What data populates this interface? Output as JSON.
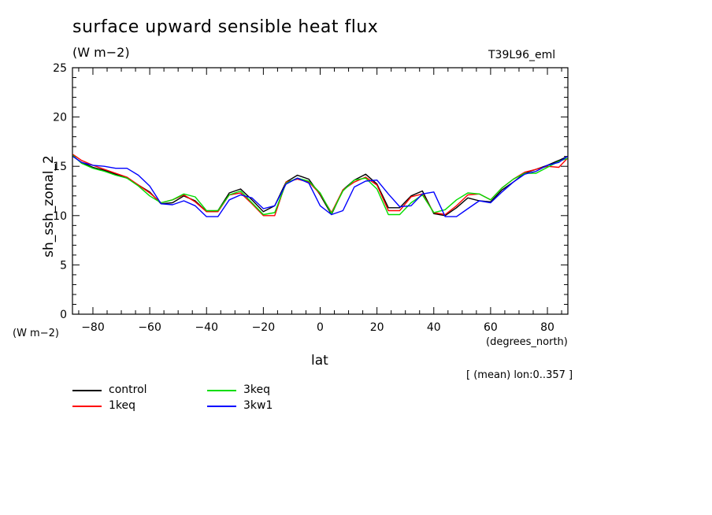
{
  "header": {
    "title": "surface upward sensible heat flux",
    "subtitle": "(W m−2)",
    "experiment": "T39L96_eml"
  },
  "axes": {
    "ylabel": "sh_ssh_zonal_2",
    "yunits": "(W m−2)",
    "xlabel": "lat",
    "xunits": "(degrees_north)",
    "note": "[ (mean) lon:0..357 ]"
  },
  "chart_data": {
    "type": "line",
    "title": "surface upward sensible heat flux",
    "xlabel": "lat",
    "ylabel": "sh_ssh_zonal_2",
    "xlim": [
      -87.2,
      87.2
    ],
    "ylim": [
      0,
      25
    ],
    "xticks": [
      -80,
      -60,
      -40,
      -20,
      0,
      20,
      40,
      60,
      80
    ],
    "xtick_labels": [
      "−80",
      "−60",
      "−40",
      "−20",
      "0",
      "20",
      "40",
      "60",
      "80"
    ],
    "yticks": [
      0,
      5,
      10,
      15,
      20,
      25
    ],
    "ytick_labels": [
      "0",
      "5",
      "10",
      "15",
      "20",
      "25"
    ],
    "grid": false,
    "legend_position": "bottom-left",
    "x": [
      -87,
      -84,
      -80,
      -76,
      -72,
      -68,
      -64,
      -60,
      -56,
      -52,
      -48,
      -44,
      -40,
      -36,
      -32,
      -28,
      -24,
      -20,
      -16,
      -12,
      -8,
      -4,
      0,
      4,
      8,
      12,
      16,
      20,
      24,
      28,
      32,
      36,
      40,
      44,
      48,
      52,
      56,
      60,
      64,
      68,
      72,
      76,
      80,
      84,
      87
    ],
    "series": [
      {
        "name": "control",
        "color": "#000000",
        "values": [
          16.0,
          15.4,
          14.9,
          14.6,
          14.2,
          13.8,
          13.1,
          12.4,
          11.2,
          11.3,
          12.0,
          11.5,
          10.4,
          10.5,
          12.3,
          12.7,
          11.6,
          10.4,
          11.0,
          13.4,
          14.1,
          13.7,
          12.1,
          10.1,
          12.6,
          13.6,
          14.2,
          13.2,
          10.8,
          10.8,
          12.0,
          12.5,
          10.2,
          10.0,
          10.8,
          11.8,
          11.5,
          11.4,
          12.6,
          13.4,
          14.3,
          14.7,
          15.1,
          15.6,
          16.0
        ]
      },
      {
        "name": "1keq",
        "color": "#ff0000",
        "values": [
          16.2,
          15.6,
          15.1,
          14.7,
          14.3,
          13.9,
          13.1,
          12.3,
          11.3,
          11.6,
          12.1,
          11.4,
          10.4,
          10.4,
          12.1,
          12.3,
          11.2,
          10.0,
          10.0,
          13.4,
          13.7,
          13.4,
          12.2,
          10.3,
          12.6,
          13.4,
          13.9,
          13.1,
          10.5,
          10.5,
          11.9,
          12.2,
          10.3,
          10.1,
          11.0,
          12.1,
          12.2,
          11.6,
          12.8,
          13.7,
          14.4,
          14.7,
          15.0,
          14.9,
          15.8
        ]
      },
      {
        "name": "3keq",
        "color": "#00dd00",
        "values": [
          16.1,
          15.3,
          14.8,
          14.5,
          14.1,
          13.8,
          13.0,
          12.0,
          11.3,
          11.6,
          12.2,
          11.9,
          10.5,
          10.5,
          12.1,
          12.5,
          11.3,
          10.1,
          10.3,
          13.3,
          13.8,
          13.5,
          12.3,
          10.2,
          12.5,
          13.6,
          13.8,
          12.7,
          10.1,
          10.1,
          11.3,
          12.1,
          10.3,
          10.6,
          11.6,
          12.3,
          12.2,
          11.6,
          12.8,
          13.7,
          14.3,
          14.3,
          14.9,
          15.5,
          15.8
        ]
      },
      {
        "name": "3kw1",
        "color": "#0000ff",
        "values": [
          16.0,
          15.4,
          15.1,
          15.0,
          14.8,
          14.8,
          14.1,
          13.0,
          11.2,
          11.1,
          11.5,
          11.0,
          9.9,
          9.9,
          11.6,
          12.1,
          11.8,
          10.7,
          11.0,
          13.2,
          13.8,
          13.3,
          11.0,
          10.1,
          10.5,
          12.9,
          13.5,
          13.6,
          12.2,
          10.9,
          11.0,
          12.2,
          12.4,
          9.9,
          9.9,
          10.7,
          11.5,
          11.3,
          12.4,
          13.4,
          14.2,
          14.5,
          15.1,
          15.4,
          16.0
        ]
      }
    ]
  },
  "legend": [
    {
      "label": "control",
      "color": "#000000"
    },
    {
      "label": "1keq",
      "color": "#ff0000"
    },
    {
      "label": "3keq",
      "color": "#00dd00"
    },
    {
      "label": "3kw1",
      "color": "#0000ff"
    }
  ]
}
